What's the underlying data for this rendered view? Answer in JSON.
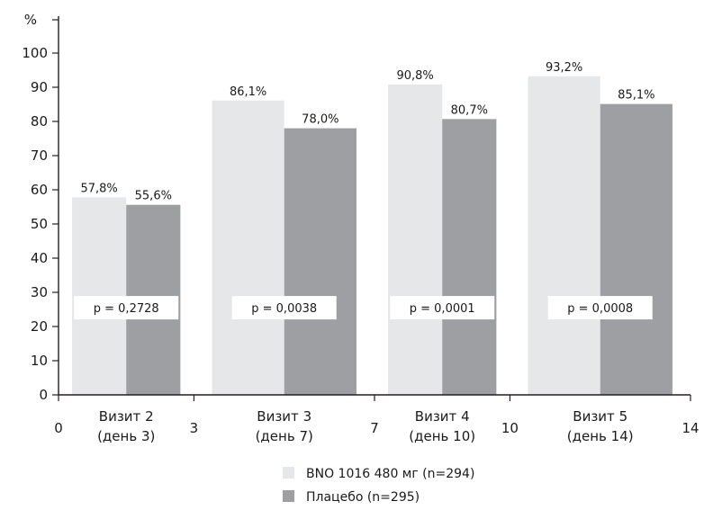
{
  "chart_data": {
    "type": "bar",
    "ylabel": "%",
    "ylim": [
      0,
      100
    ],
    "yticks": [
      0,
      10,
      20,
      30,
      40,
      50,
      60,
      70,
      80,
      90,
      100
    ],
    "xlim": [
      0,
      14
    ],
    "xticks": [
      0,
      3,
      7,
      10,
      14
    ],
    "categories": [
      {
        "line1": "Визит 2",
        "line2": "(день 3)",
        "x_from": 0,
        "x_to": 3
      },
      {
        "line1": "Визит 3",
        "line2": "(день 7)",
        "x_from": 3,
        "x_to": 7
      },
      {
        "line1": "Визит 4",
        "line2": "(день 10)",
        "x_from": 7,
        "x_to": 10
      },
      {
        "line1": "Визит 5",
        "line2": "(день 14)",
        "x_from": 10,
        "x_to": 14
      }
    ],
    "series": [
      {
        "name": "BNO 1016 480 мг (n=294)",
        "color": "#e6e7e8",
        "values": [
          57.8,
          86.1,
          90.8,
          93.2
        ],
        "labels": [
          "57,8%",
          "86,1%",
          "90,8%",
          "93,2%"
        ]
      },
      {
        "name": "Плацебо (n=295)",
        "color": "#9d9fa2",
        "values": [
          55.6,
          78.0,
          80.7,
          85.1
        ],
        "labels": [
          "55,6%",
          "78,0%",
          "80,7%",
          "85,1%"
        ]
      }
    ],
    "p_values": [
      "p = 0,2728",
      "p = 0,0038",
      "p = 0,0001",
      "p = 0,0008"
    ],
    "grid": false,
    "legend_position": "bottom-center"
  }
}
